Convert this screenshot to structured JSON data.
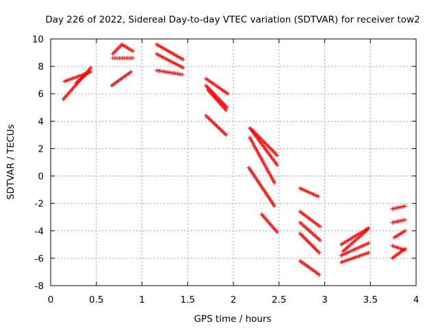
{
  "chart_data": {
    "type": "scatter",
    "title": "Day 226 of 2022, Sidereal Day-to-day VTEC variation (SDTVAR) for receiver tow2",
    "xlabel": "GPS time / hours",
    "ylabel": "SDTVAR / TECUs",
    "xlim": [
      0,
      4
    ],
    "ylim": [
      -8,
      10
    ],
    "x_ticks": [
      0,
      0.5,
      1,
      1.5,
      2,
      2.5,
      3,
      3.5,
      4
    ],
    "x_tick_labels": [
      "0",
      "0.5",
      "1",
      "1.5",
      "2",
      "2.5",
      "3",
      "3.5",
      "4"
    ],
    "y_ticks": [
      -8,
      -6,
      -4,
      -2,
      0,
      2,
      4,
      6,
      8,
      10
    ],
    "y_tick_labels": [
      "-8",
      "-6",
      "-4",
      "-2",
      "0",
      "2",
      "4",
      "6",
      "8",
      "10"
    ],
    "grid": true,
    "marker": "+",
    "color": "#ff0000",
    "tracks": [
      {
        "x": [
          0.14,
          0.44
        ],
        "y": [
          5.6,
          7.9
        ]
      },
      {
        "x": [
          0.15,
          0.44
        ],
        "y": [
          6.9,
          7.6
        ]
      },
      {
        "x": [
          0.28,
          0.42
        ],
        "y": [
          6.8,
          7.6
        ]
      },
      {
        "x": [
          0.67,
          0.88
        ],
        "y": [
          6.6,
          7.6
        ]
      },
      {
        "x": [
          0.68,
          0.78,
          0.9
        ],
        "y": [
          8.9,
          9.6,
          9.1
        ]
      },
      {
        "x": [
          0.68,
          0.9
        ],
        "y": [
          8.6,
          8.6
        ]
      },
      {
        "x": [
          1.16,
          1.44
        ],
        "y": [
          7.7,
          7.4
        ]
      },
      {
        "x": [
          1.16,
          1.45
        ],
        "y": [
          8.9,
          7.9
        ]
      },
      {
        "x": [
          1.16,
          1.45
        ],
        "y": [
          9.6,
          8.5
        ]
      },
      {
        "x": [
          1.7,
          1.92
        ],
        "y": [
          4.4,
          3.0
        ]
      },
      {
        "x": [
          1.7,
          1.93
        ],
        "y": [
          6.6,
          5.0
        ]
      },
      {
        "x": [
          1.7,
          1.94
        ],
        "y": [
          7.1,
          6.0
        ]
      },
      {
        "x": [
          1.72,
          1.92
        ],
        "y": [
          6.3,
          4.8
        ]
      },
      {
        "x": [
          2.17,
          2.45
        ],
        "y": [
          0.6,
          -2.2
        ]
      },
      {
        "x": [
          2.18,
          2.48
        ],
        "y": [
          3.5,
          0.8
        ]
      },
      {
        "x": [
          2.18,
          2.45
        ],
        "y": [
          2.8,
          -0.5
        ]
      },
      {
        "x": [
          2.2,
          2.48
        ],
        "y": [
          3.4,
          1.5
        ]
      },
      {
        "x": [
          2.31,
          2.48
        ],
        "y": [
          -2.8,
          -4.1
        ]
      },
      {
        "x": [
          2.73,
          2.93
        ],
        "y": [
          -0.9,
          -1.5
        ]
      },
      {
        "x": [
          2.73,
          2.95
        ],
        "y": [
          -2.6,
          -3.7
        ]
      },
      {
        "x": [
          2.73,
          2.95
        ],
        "y": [
          -3.4,
          -4.7
        ]
      },
      {
        "x": [
          2.73,
          2.94
        ],
        "y": [
          -4.2,
          -5.6
        ]
      },
      {
        "x": [
          2.73,
          2.94
        ],
        "y": [
          -6.2,
          -7.2
        ]
      },
      {
        "x": [
          3.18,
          3.48
        ],
        "y": [
          -6.3,
          -5.6
        ]
      },
      {
        "x": [
          3.18,
          3.48
        ],
        "y": [
          -5.8,
          -4.9
        ]
      },
      {
        "x": [
          3.18,
          3.48
        ],
        "y": [
          -5.0,
          -3.8
        ]
      },
      {
        "x": [
          3.2,
          3.47
        ],
        "y": [
          -5.5,
          -3.9
        ]
      },
      {
        "x": [
          3.74,
          3.88
        ],
        "y": [
          -2.4,
          -2.2
        ]
      },
      {
        "x": [
          3.74,
          3.88
        ],
        "y": [
          -3.4,
          -3.2
        ]
      },
      {
        "x": [
          3.76,
          3.88
        ],
        "y": [
          -4.5,
          -4.0
        ]
      },
      {
        "x": [
          3.74,
          3.88
        ],
        "y": [
          -5.1,
          -5.4
        ]
      },
      {
        "x": [
          3.74,
          3.88
        ],
        "y": [
          -6.0,
          -5.3
        ]
      }
    ]
  }
}
